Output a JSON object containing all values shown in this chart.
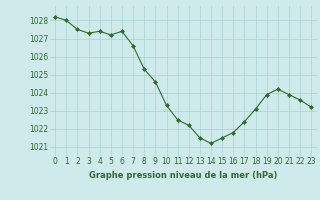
{
  "x": [
    0,
    1,
    2,
    3,
    4,
    5,
    6,
    7,
    8,
    9,
    10,
    11,
    12,
    13,
    14,
    15,
    16,
    17,
    18,
    19,
    20,
    21,
    22,
    23
  ],
  "y": [
    1028.2,
    1028.0,
    1027.5,
    1027.3,
    1027.4,
    1027.2,
    1027.4,
    1026.6,
    1025.3,
    1024.6,
    1023.3,
    1022.5,
    1022.2,
    1021.5,
    1021.2,
    1021.5,
    1021.8,
    1022.4,
    1023.1,
    1023.9,
    1024.2,
    1023.9,
    1023.6,
    1023.2
  ],
  "ylim": [
    1020.5,
    1028.8
  ],
  "yticks": [
    1021,
    1022,
    1023,
    1024,
    1025,
    1026,
    1027,
    1028
  ],
  "xticks": [
    0,
    1,
    2,
    3,
    4,
    5,
    6,
    7,
    8,
    9,
    10,
    11,
    12,
    13,
    14,
    15,
    16,
    17,
    18,
    19,
    20,
    21,
    22,
    23
  ],
  "xlabel": "Graphe pression niveau de la mer (hPa)",
  "line_color": "#2d6e2d",
  "marker_color": "#2d6e2d",
  "bg_color": "#ceeaea",
  "grid_color": "#a8d4d4",
  "tick_label_color": "#2d6e2d",
  "xlabel_color": "#2d6e2d",
  "xlabel_fontsize": 6.0,
  "tick_fontsize": 5.5
}
